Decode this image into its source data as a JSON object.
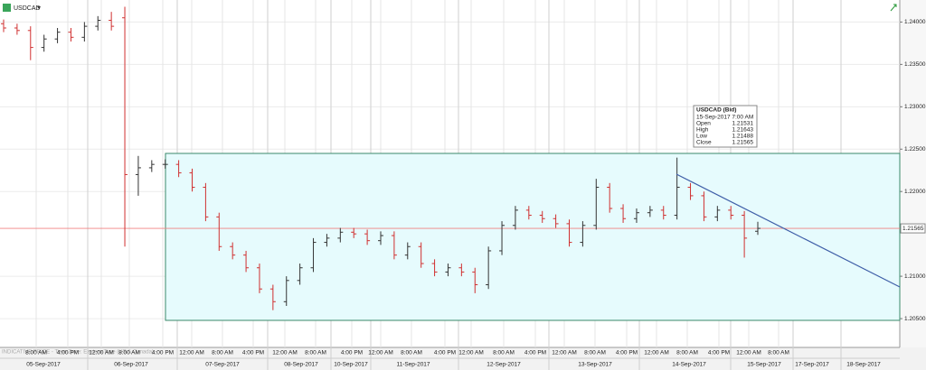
{
  "chart_data": {
    "type": "ohlc",
    "title": "USDCAD",
    "footnote": "INDICATIVE PRICE - Time Zone: Eastern Time (US & Canada)",
    "up_color": "#333333",
    "down_color": "#d03030",
    "open": [
      1.2398,
      1.2393,
      1.239,
      1.237,
      1.238,
      1.2388,
      1.2382,
      1.2395,
      1.2402,
      1.2405,
      1.222,
      1.2228,
      1.2232,
      1.2232,
      1.2222,
      1.2205,
      1.217,
      1.2135,
      1.2125,
      1.211,
      1.2085,
      1.207,
      1.2095,
      1.211,
      1.214,
      1.2145,
      1.2152,
      1.215,
      1.2142,
      1.2148,
      1.2125,
      1.2135,
      1.2115,
      1.2105,
      1.211,
      1.2105,
      1.209,
      1.213,
      1.216,
      1.2178,
      1.2172,
      1.2168,
      1.2162,
      1.214,
      1.216,
      1.2205,
      1.218,
      1.2168,
      1.2175,
      1.2178,
      1.2172,
      1.2205,
      1.2195,
      1.217,
      1.2178,
      1.2172,
      1.21531
    ],
    "high": [
      1.2403,
      1.2398,
      1.2395,
      1.2385,
      1.2393,
      1.2393,
      1.24,
      1.2407,
      1.2412,
      1.2418,
      1.2242,
      1.2237,
      1.2238,
      1.2237,
      1.2227,
      1.221,
      1.2175,
      1.214,
      1.213,
      1.2115,
      1.209,
      1.21,
      1.2115,
      1.2145,
      1.215,
      1.2157,
      1.2157,
      1.2155,
      1.2153,
      1.2153,
      1.214,
      1.214,
      1.212,
      1.2115,
      1.2115,
      1.211,
      1.2135,
      1.2165,
      1.2183,
      1.2183,
      1.2177,
      1.2173,
      1.2167,
      1.2165,
      1.2215,
      1.221,
      1.2185,
      1.218,
      1.2183,
      1.2183,
      1.224,
      1.221,
      1.22,
      1.2183,
      1.2183,
      1.2177,
      1.21643
    ],
    "low": [
      1.2388,
      1.2385,
      1.2355,
      1.2365,
      1.2375,
      1.2377,
      1.2377,
      1.239,
      1.239,
      1.2135,
      1.2195,
      1.2223,
      1.2227,
      1.2217,
      1.22,
      1.2165,
      1.213,
      1.212,
      1.2105,
      1.208,
      1.206,
      1.2065,
      1.209,
      1.2105,
      1.2135,
      1.214,
      1.2145,
      1.2137,
      1.2137,
      1.212,
      1.212,
      1.211,
      1.21,
      1.21,
      1.21,
      1.208,
      1.2085,
      1.2125,
      1.2155,
      1.2167,
      1.2163,
      1.2157,
      1.2135,
      1.2135,
      1.2155,
      1.2175,
      1.2163,
      1.2163,
      1.217,
      1.2167,
      1.2167,
      1.219,
      1.2165,
      1.2165,
      1.2167,
      1.2122,
      1.21488
    ],
    "close": [
      1.2393,
      1.239,
      1.237,
      1.238,
      1.2388,
      1.2382,
      1.2395,
      1.2402,
      1.2395,
      1.222,
      1.2228,
      1.2232,
      1.2232,
      1.2222,
      1.2205,
      1.217,
      1.2135,
      1.2125,
      1.211,
      1.2085,
      1.207,
      1.2095,
      1.211,
      1.214,
      1.2145,
      1.2152,
      1.215,
      1.2142,
      1.2148,
      1.2125,
      1.2135,
      1.2115,
      1.2105,
      1.211,
      1.2105,
      1.209,
      1.213,
      1.216,
      1.2178,
      1.2172,
      1.2168,
      1.2162,
      1.214,
      1.216,
      1.2205,
      1.218,
      1.2168,
      1.2175,
      1.2178,
      1.2172,
      1.2205,
      1.2195,
      1.217,
      1.2178,
      1.2172,
      1.2145,
      1.21565
    ],
    "ylim": [
      1.2016,
      1.2426
    ],
    "yticks": [
      {
        "value": 1.205,
        "label": "1.20500"
      },
      {
        "value": 1.21,
        "label": "1.21000"
      },
      {
        "value": 1.22,
        "label": "1.22000"
      },
      {
        "value": 1.225,
        "label": "1.22500"
      },
      {
        "value": 1.23,
        "label": "1.23000"
      },
      {
        "value": 1.235,
        "label": "1.23500"
      },
      {
        "value": 1.24,
        "label": "1.24000"
      }
    ],
    "last_price": 1.21565,
    "time_labels": [
      "8:00 AM",
      "4:00 PM",
      "12:00 AM",
      "8:00 AM",
      "4:00 PM",
      "12:00 AM",
      "8:00 AM",
      "4:00 PM",
      "12:00 AM",
      "8:00 AM",
      "4:00 PM",
      "12:00 AM",
      "8:00 AM",
      "4:00 PM",
      "12:00 AM",
      "8:00 AM",
      "4:00 PM",
      "12:00 AM",
      "8:00 AM",
      "4:00 PM",
      "12:00 AM",
      "8:00 AM",
      "4:00 PM",
      "12:00 AM",
      "8:00 AM"
    ],
    "date_labels": [
      "05-Sep-2017",
      "06-Sep-2017",
      "07-Sep-2017",
      "08-Sep-2017",
      "10-Sep-2017",
      "11-Sep-2017",
      "12-Sep-2017",
      "13-Sep-2017",
      "14-Sep-2017",
      "15-Sep-2017",
      "17-Sep-2017",
      "18-Sep-2017"
    ],
    "tooltip": {
      "title": "USDCAD (Bid)",
      "time": "15-Sep-2017 7:00 AM",
      "rows": [
        [
          "Open",
          "1.21531"
        ],
        [
          "High",
          "1.21643"
        ],
        [
          "Low",
          "1.21488"
        ],
        [
          "Close",
          "1.21565"
        ]
      ]
    }
  }
}
